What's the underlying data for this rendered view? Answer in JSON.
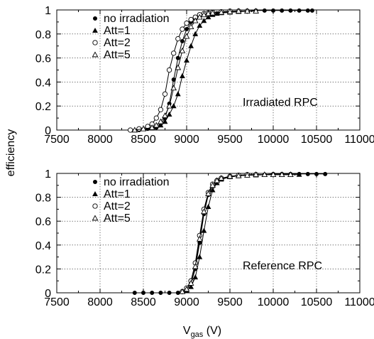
{
  "figure": {
    "shared_ylabel": "efficiency",
    "shared_xlabel_main": "V",
    "shared_xlabel_sub": "gas",
    "shared_xlabel_unit": " (V)"
  },
  "chart_data": [
    {
      "type": "line",
      "annotation": "Irradiated RPC",
      "xlabel": "V_gas (V)",
      "ylabel": "efficiency",
      "xlim": [
        7500,
        11000
      ],
      "ylim": [
        0,
        1
      ],
      "xticks": [
        7500,
        8000,
        8500,
        9000,
        9500,
        10000,
        10500,
        11000
      ],
      "yticks": [
        0,
        0.2,
        0.4,
        0.6,
        0.8,
        1
      ],
      "grid": true,
      "legend_position": "top-left",
      "series": [
        {
          "name": "no irradiation",
          "marker": "filled-circle",
          "x": [
            8350,
            8450,
            8550,
            8650,
            8700,
            8750,
            8800,
            8850,
            8900,
            8950,
            9000,
            9050,
            9100,
            9150,
            9200,
            9250,
            9300,
            9400,
            9500,
            9600,
            9700,
            9800,
            9900,
            10000,
            10100,
            10200,
            10300,
            10400,
            10450
          ],
          "values": [
            0.0,
            0.0,
            0.01,
            0.02,
            0.05,
            0.1,
            0.22,
            0.42,
            0.6,
            0.74,
            0.84,
            0.9,
            0.93,
            0.95,
            0.96,
            0.97,
            0.975,
            0.98,
            0.985,
            0.99,
            0.99,
            0.995,
            0.995,
            0.995,
            0.995,
            0.995,
            0.995,
            0.995,
            0.995
          ]
        },
        {
          "name": "Att=1",
          "marker": "filled-triangle",
          "x": [
            8400,
            8500,
            8600,
            8700,
            8750,
            8800,
            8850,
            8900,
            8950,
            9000,
            9050,
            9100,
            9150,
            9200,
            9250,
            9300,
            9350,
            9400,
            9500,
            9600,
            9700
          ],
          "values": [
            0.0,
            0.01,
            0.02,
            0.04,
            0.07,
            0.13,
            0.2,
            0.3,
            0.45,
            0.58,
            0.7,
            0.8,
            0.87,
            0.91,
            0.94,
            0.96,
            0.97,
            0.975,
            0.98,
            0.985,
            0.99
          ]
        },
        {
          "name": "Att=2",
          "marker": "open-circle",
          "x": [
            8350,
            8450,
            8550,
            8600,
            8650,
            8700,
            8750,
            8800,
            8850,
            8900,
            8950,
            9000,
            9050,
            9100,
            9150,
            9200,
            9250,
            9300,
            9400,
            9500,
            9600,
            9700
          ],
          "values": [
            0.0,
            0.01,
            0.03,
            0.05,
            0.1,
            0.17,
            0.3,
            0.5,
            0.64,
            0.76,
            0.84,
            0.89,
            0.92,
            0.94,
            0.96,
            0.97,
            0.975,
            0.98,
            0.985,
            0.99,
            0.99,
            0.99
          ]
        },
        {
          "name": "Att=5",
          "marker": "open-triangle",
          "x": [
            8400,
            8500,
            8600,
            8650,
            8700,
            8750,
            8800,
            8850,
            8900,
            8950,
            9000,
            9050,
            9100,
            9150,
            9200,
            9250,
            9300,
            9400,
            9500,
            9600,
            9700,
            9800
          ],
          "values": [
            0.0,
            0.01,
            0.02,
            0.04,
            0.07,
            0.12,
            0.2,
            0.35,
            0.52,
            0.66,
            0.78,
            0.86,
            0.91,
            0.94,
            0.96,
            0.97,
            0.975,
            0.98,
            0.985,
            0.99,
            0.99,
            0.99
          ]
        }
      ]
    },
    {
      "type": "line",
      "annotation": "Reference RPC",
      "xlabel": "V_gas (V)",
      "ylabel": "efficiency",
      "xlim": [
        7500,
        11000
      ],
      "ylim": [
        0,
        1
      ],
      "xticks": [
        7500,
        8000,
        8500,
        9000,
        9500,
        10000,
        10500,
        11000
      ],
      "yticks": [
        0,
        0.2,
        0.4,
        0.6,
        0.8,
        1
      ],
      "grid": true,
      "legend_position": "top-left",
      "series": [
        {
          "name": "no irradiation",
          "marker": "filled-circle",
          "x": [
            8400,
            8500,
            8600,
            8700,
            8800,
            8900,
            8950,
            9000,
            9050,
            9100,
            9150,
            9200,
            9250,
            9300,
            9350,
            9400,
            9500,
            9600,
            9700,
            9800,
            9900,
            10000,
            10100,
            10200,
            10300,
            10400,
            10500,
            10600
          ],
          "values": [
            0.0,
            0.0,
            0.0,
            0.0,
            0.0,
            0.0,
            0.01,
            0.03,
            0.08,
            0.2,
            0.42,
            0.66,
            0.82,
            0.9,
            0.94,
            0.96,
            0.97,
            0.98,
            0.985,
            0.99,
            0.99,
            0.995,
            0.995,
            0.995,
            0.995,
            0.995,
            0.995,
            0.995
          ]
        },
        {
          "name": "Att=1",
          "marker": "filled-triangle",
          "x": [
            9000,
            9050,
            9100,
            9150,
            9200,
            9250,
            9300,
            9350,
            9400,
            9500,
            9600,
            9700,
            9800,
            9900,
            10000,
            10100,
            10200,
            10300
          ],
          "values": [
            0.02,
            0.05,
            0.13,
            0.3,
            0.52,
            0.72,
            0.86,
            0.92,
            0.95,
            0.97,
            0.98,
            0.985,
            0.985,
            0.99,
            0.99,
            0.99,
            0.99,
            0.99
          ]
        },
        {
          "name": "Att=2",
          "marker": "open-circle",
          "x": [
            8950,
            9000,
            9050,
            9100,
            9150,
            9200,
            9250,
            9300,
            9350,
            9400,
            9500,
            9600,
            9700,
            9800
          ],
          "values": [
            0.01,
            0.04,
            0.1,
            0.25,
            0.48,
            0.7,
            0.84,
            0.91,
            0.94,
            0.96,
            0.975,
            0.985,
            0.99,
            0.99
          ]
        },
        {
          "name": "Att=5",
          "marker": "open-triangle",
          "x": [
            8950,
            9000,
            9050,
            9100,
            9150,
            9200,
            9250,
            9300,
            9350,
            9400,
            9500,
            9600,
            9700,
            9800,
            9900,
            10000,
            10100,
            10200
          ],
          "values": [
            0.01,
            0.03,
            0.08,
            0.22,
            0.45,
            0.68,
            0.83,
            0.9,
            0.94,
            0.96,
            0.975,
            0.98,
            0.985,
            0.99,
            0.99,
            0.99,
            0.99,
            0.99
          ]
        }
      ]
    }
  ]
}
